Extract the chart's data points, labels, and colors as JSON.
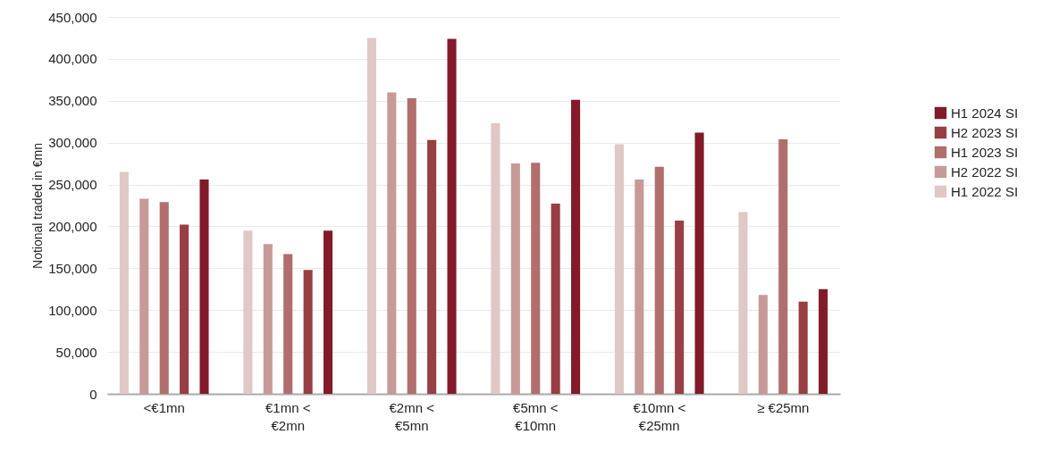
{
  "chart_data": {
    "type": "bar",
    "ylabel": "Notional traded in €mn",
    "categories": [
      "<€1mn",
      "€1mn <\n€2mn",
      "€2mn <\n€5mn",
      "€5mn <\n€10mn",
      "€10mn <\n€25mn",
      "≥ €25mn"
    ],
    "series": [
      {
        "name": "H1 2022 SI",
        "color": "#e0c8c6",
        "values": [
          265000,
          195000,
          425000,
          323000,
          298000,
          217000
        ]
      },
      {
        "name": "H2 2022 SI",
        "color": "#c79a98",
        "values": [
          233000,
          179000,
          360000,
          275000,
          256000,
          118000
        ]
      },
      {
        "name": "H1 2023 SI",
        "color": "#b06e6c",
        "values": [
          229000,
          167000,
          353000,
          276000,
          271000,
          304000
        ]
      },
      {
        "name": "H2 2023 SI",
        "color": "#973f44",
        "values": [
          202000,
          148000,
          303000,
          227000,
          207000,
          110000
        ]
      },
      {
        "name": "H1 2024 SI",
        "color": "#821a29",
        "values": [
          256000,
          195000,
          424000,
          351000,
          312000,
          125000
        ]
      }
    ],
    "ylim": [
      0,
      450000
    ],
    "yticks": [
      0,
      {
        "value": 50000,
        "label": "50,000"
      },
      {
        "value": 100000,
        "label": "100,000"
      },
      {
        "value": 150000,
        "label": "150,000"
      },
      {
        "value": 200000,
        "label": "200,000"
      },
      {
        "value": 250000,
        "label": "250,000"
      },
      {
        "value": 300000,
        "label": "300,000"
      },
      {
        "value": 350000,
        "label": "350,000"
      },
      {
        "value": 400000,
        "label": "400,000"
      },
      {
        "value": 450000,
        "label": "450,000"
      }
    ],
    "grid": "y",
    "legend": "right"
  }
}
